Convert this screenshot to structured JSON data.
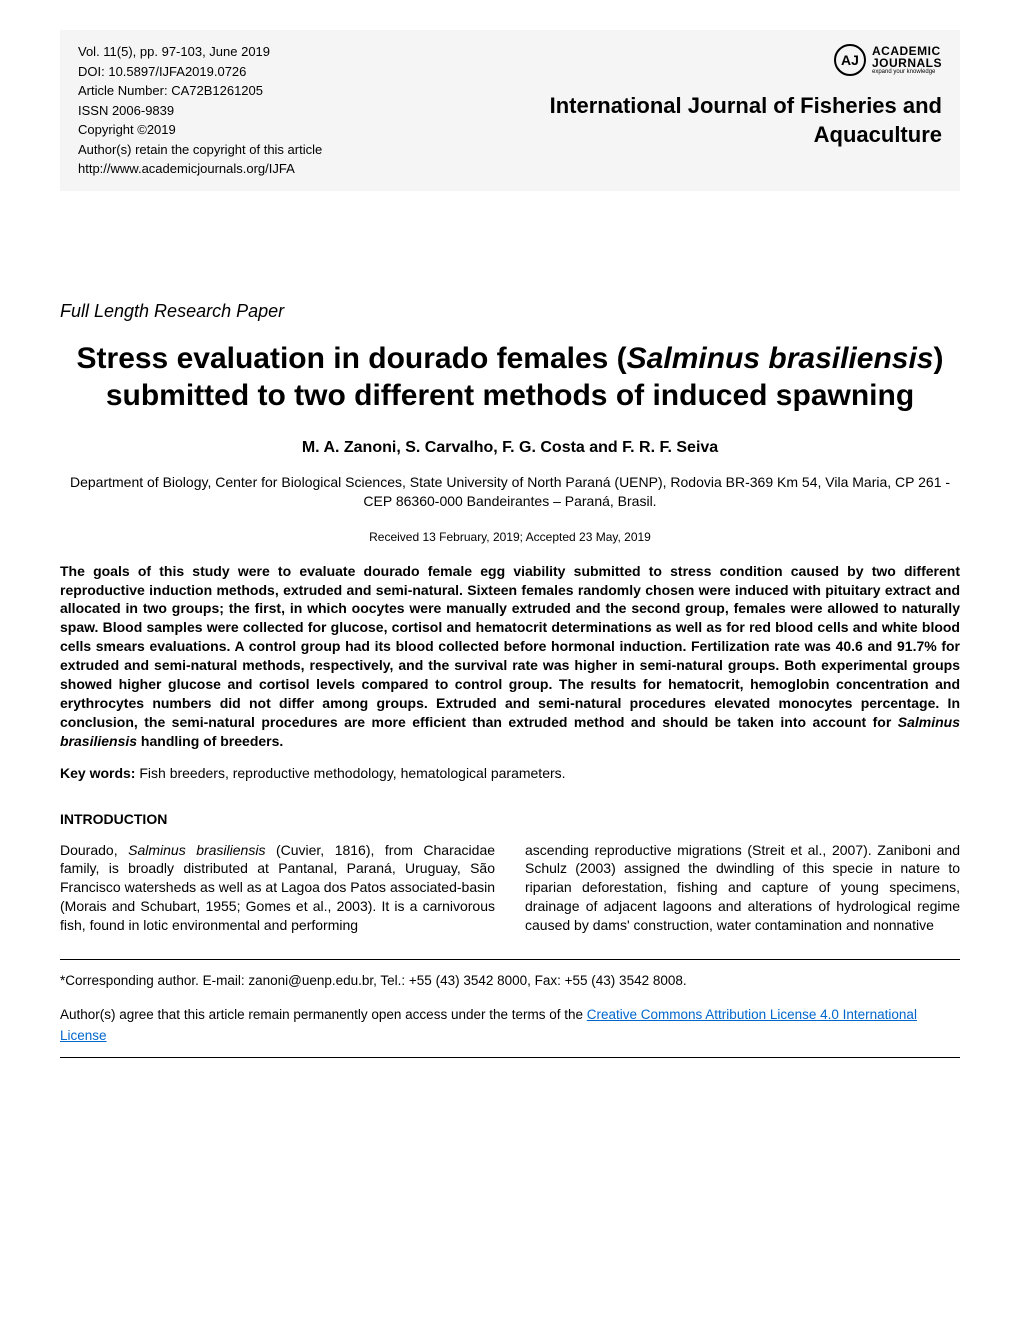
{
  "meta": {
    "volume": "Vol. 11(5), pp. 97-103, June 2019",
    "doi": "DOI: 10.5897/IJFA2019.0726",
    "article_number": "Article Number: CA72B1261205",
    "issn": "ISSN 2006-9839",
    "copyright": "Copyright ©2019",
    "rights": "Author(s) retain the copyright of this article",
    "url": "http://www.academicjournals.org/IJFA"
  },
  "logo": {
    "initials": "AJ",
    "main": "ACADEMIC",
    "main2": "JOURNALS",
    "sub": "expand your knowledge"
  },
  "journal": {
    "line1": "International Journal of Fisheries and",
    "line2": "Aquaculture"
  },
  "article_type": "Full Length Research Paper",
  "title": {
    "pre": "Stress evaluation in dourado females (",
    "species": "Salminus brasiliensis",
    "post": ") submitted to two different methods of induced spawning"
  },
  "authors": "M. A. Zanoni, S. Carvalho, F. G. Costa and F. R. F. Seiva",
  "affiliation": "Department of Biology, Center for Biological Sciences, State University of North Paraná (UENP), Rodovia BR-369 Km 54, Vila Maria, CP 261 - CEP 86360-000 Bandeirantes – Paraná, Brasil.",
  "dates": "Received 13 February, 2019; Accepted 23 May, 2019",
  "abstract": {
    "p1": "The goals of this study were to evaluate dourado female egg viability submitted to stress condition caused by two different reproductive induction methods, extruded and semi-natural. Sixteen females randomly chosen were induced with pituitary extract and allocated in two groups; the first, in which oocytes were manually extruded and the second group, females were allowed to naturally spaw. Blood samples were collected for glucose, cortisol and hematocrit determinations as well as for red blood cells and white blood cells smears evaluations. A control group had its blood collected before hormonal induction. Fertilization rate was 40.6 and 91.7% for extruded and semi-natural methods, respectively, and the survival rate was higher in semi-natural groups. Both experimental groups showed higher glucose and cortisol levels compared to control group. The results for hematocrit, hemoglobin concentration and erythrocytes numbers did not differ among groups. Extruded and semi-natural procedures elevated monocytes percentage. In conclusion, the semi-natural procedures are more efficient than extruded method and should be taken into account for ",
    "species": "Salminus brasiliensis",
    "p2": " handling of breeders."
  },
  "keywords": {
    "label": "Key words:",
    "text": " Fish breeders, reproductive methodology, hematological parameters."
  },
  "intro": {
    "heading": "INTRODUCTION",
    "col1_pre": "Dourado, ",
    "col1_species": "Salminus brasiliensis",
    "col1_post": " (Cuvier, 1816), from Characidae family, is broadly distributed at Pantanal, Paraná, Uruguay, São Francisco watersheds as well as at Lagoa dos Patos associated-basin (Morais and Schubart, 1955; Gomes et al., 2003). It is a carnivorous fish, found in lotic environmental and performing",
    "col2": "ascending reproductive migrations (Streit et al., 2007). Zaniboni and Schulz (2003) assigned the dwindling of this specie in nature to riparian deforestation, fishing and capture of young specimens, drainage of adjacent lagoons and alterations of hydrological regime caused by dams' construction, water contamination and nonnative"
  },
  "footer": {
    "corresponding": "*Corresponding author. E-mail: zanoni@uenp.edu.br, Tel.: +55 (43) 3542 8000, Fax: +55 (43) 3542 8008.",
    "license_pre": "Author(s) agree that this article remain permanently open access under the terms of the ",
    "license_link": "Creative Commons Attribution License 4.0 International License"
  }
}
